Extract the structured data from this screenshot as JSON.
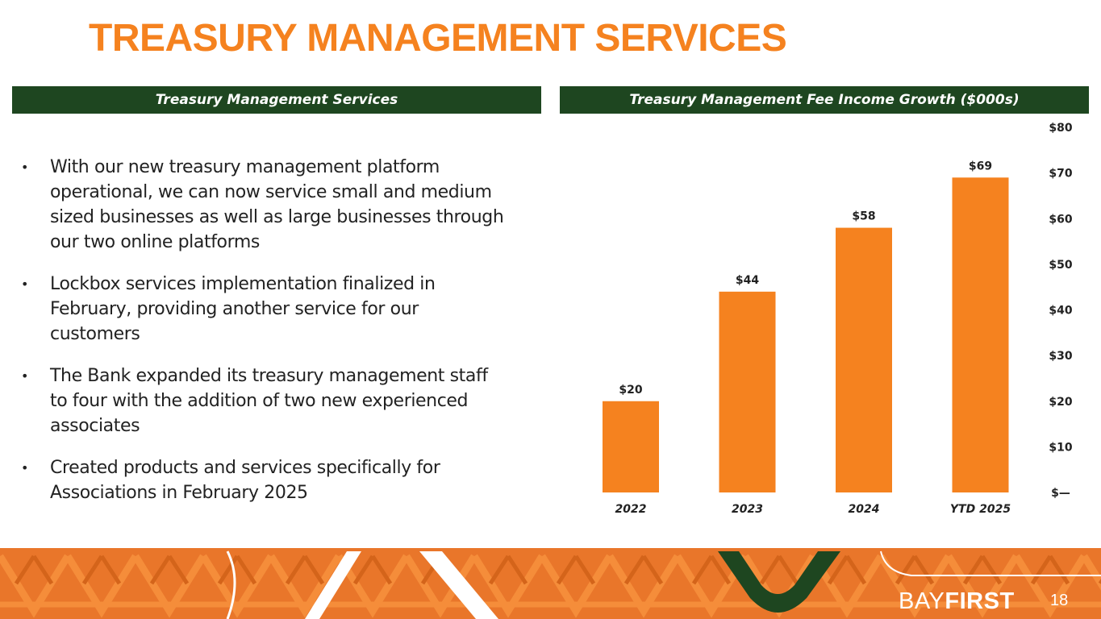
{
  "title": "TREASURY MANAGEMENT SERVICES",
  "left_header": "Treasury Management Services",
  "right_header": "Treasury Management Fee Income Growth ($000s)",
  "bullets": [
    "With our new treasury management platform operational, we can now service small and medium sized businesses as well as large businesses through our two online platforms",
    "Lockbox services implementation finalized in February, providing another service for our customers",
    "The Bank expanded its treasury management staff to four with the addition of two new experienced associates",
    "Created products and services specifically for Associations in February 2025"
  ],
  "bullet_symbol": "•",
  "chart_data": {
    "type": "bar",
    "title": "Treasury Management Fee Income Growth ($000s)",
    "categories": [
      "2022",
      "2023",
      "2024",
      "YTD 2025"
    ],
    "values": [
      20,
      44,
      58,
      69
    ],
    "data_labels": [
      "$20",
      "$44",
      "$58",
      "$69"
    ],
    "y_ticks": [
      0,
      10,
      20,
      30,
      40,
      50,
      60,
      70,
      80
    ],
    "y_tick_labels": [
      "$—",
      "$10",
      "$20",
      "$30",
      "$40",
      "$50",
      "$60",
      "$70",
      "$80"
    ],
    "ylim": [
      0,
      80
    ],
    "y_axis_position": "right",
    "grid": false,
    "bar_color": "#F5821F"
  },
  "colors": {
    "accent_orange": "#F5821F",
    "header_green": "#1E4620",
    "footer_orange": "#E9762A",
    "footer_dark_orange": "#D4641A"
  },
  "footer": {
    "logo_part1": "BAY",
    "logo_part2": "FIRST",
    "page_number": "18"
  }
}
